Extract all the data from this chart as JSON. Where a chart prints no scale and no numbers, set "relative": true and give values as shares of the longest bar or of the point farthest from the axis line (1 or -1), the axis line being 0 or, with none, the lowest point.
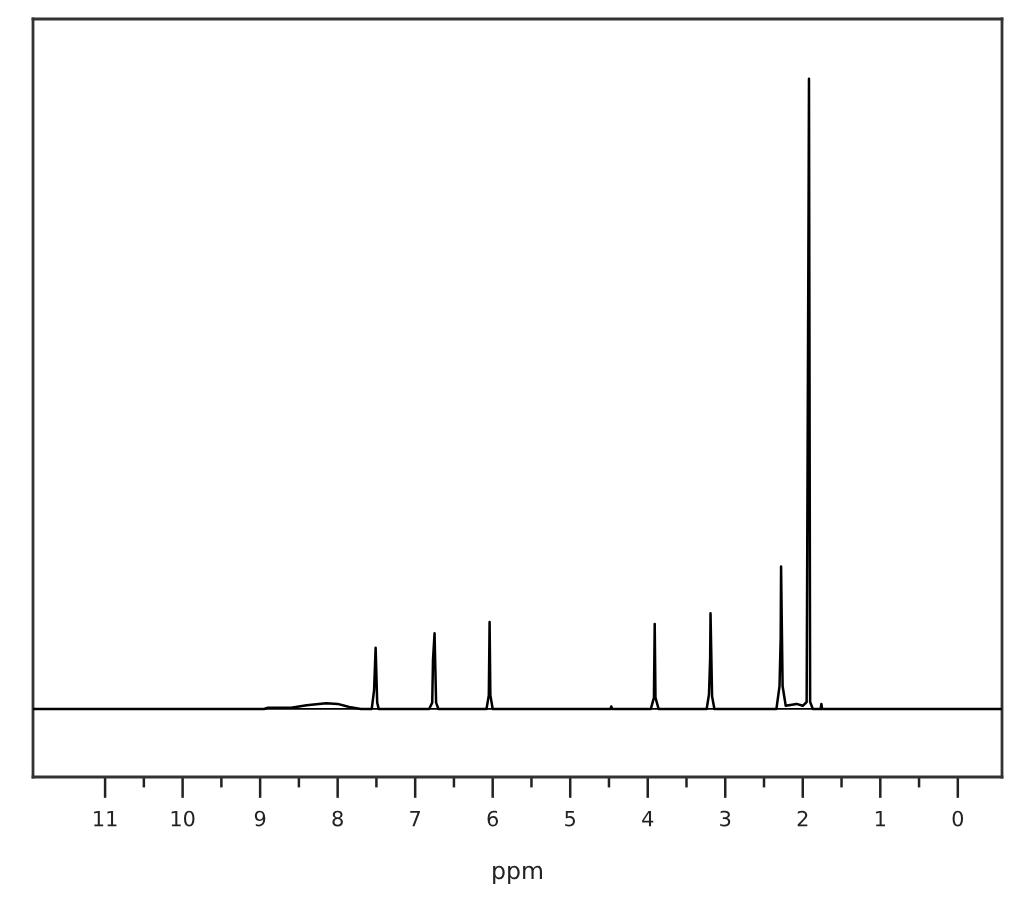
{
  "chart_data": {
    "type": "line",
    "xlabel": "ppm",
    "relative": true,
    "color": "#000000",
    "xlim": [
      11.93,
      -0.57
    ],
    "xticks": [
      11,
      10,
      9,
      8,
      7,
      6,
      5,
      4,
      3,
      2,
      1,
      0
    ],
    "ref_lines": [
      {
        "axis": "y",
        "value": 0,
        "color": "#000000"
      }
    ],
    "x": [
      11.93,
      8.95,
      8.9,
      8.6,
      8.4,
      8.15,
      8.0,
      7.85,
      7.7,
      7.56,
      7.53,
      7.51,
      7.49,
      7.47,
      6.82,
      6.78,
      6.77,
      6.75,
      6.73,
      6.7,
      6.08,
      6.05,
      6.04,
      6.03,
      6.0,
      4.48,
      4.47,
      4.46,
      3.96,
      3.92,
      3.91,
      3.9,
      3.86,
      3.24,
      3.21,
      3.195,
      3.19,
      3.17,
      3.14,
      2.34,
      2.3,
      2.285,
      2.28,
      2.26,
      2.22,
      2.08,
      2.0,
      1.95,
      1.925,
      1.92,
      1.905,
      1.87,
      1.77,
      1.76,
      1.75,
      -0.57
    ],
    "values": [
      0,
      0,
      0.002,
      0.002,
      0.006,
      0.009,
      0.008,
      0.003,
      0,
      0,
      0.03,
      0.097,
      0.01,
      0,
      0,
      0.01,
      0.078,
      0.12,
      0.01,
      0,
      0,
      0.022,
      0.138,
      0.022,
      0,
      0,
      0.004,
      0,
      0,
      0.018,
      0.135,
      0.018,
      0,
      0,
      0.023,
      0.08,
      0.152,
      0.02,
      0,
      0,
      0.036,
      0.112,
      0.226,
      0.036,
      0.005,
      0.008,
      0.005,
      0.011,
      0.81,
      1,
      0.011,
      0,
      0,
      0.008,
      0,
      0
    ]
  }
}
